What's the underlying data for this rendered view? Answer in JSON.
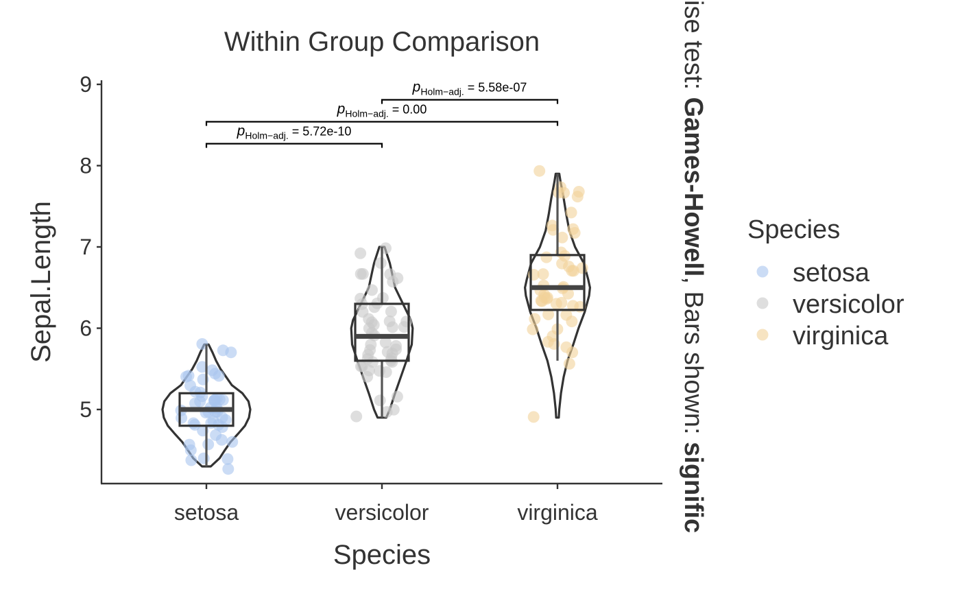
{
  "chart_data": {
    "type": "violin-box-scatter",
    "title": "Within Group Comparison",
    "xlabel": "Species",
    "ylabel": "Sepal.Length",
    "categories": [
      "setosa",
      "versicolor",
      "virginica"
    ],
    "ylim": [
      4.1,
      9.05
    ],
    "yticks": [
      5,
      6,
      7,
      8,
      9
    ],
    "grid": false,
    "legend": {
      "title": "Species",
      "position": "right",
      "entries": [
        "setosa",
        "versicolor",
        "virginica"
      ]
    },
    "colors": {
      "setosa": "#a9c4ef",
      "versicolor": "#c8c8c8",
      "virginica": "#f2d29a",
      "outline": "#333333"
    },
    "boxes": [
      {
        "category": "setosa",
        "min": 4.3,
        "q1": 4.8,
        "median": 5.0,
        "q3": 5.2,
        "max": 5.8
      },
      {
        "category": "versicolor",
        "min": 4.9,
        "q1": 5.6,
        "median": 5.9,
        "q3": 6.3,
        "max": 7.0
      },
      {
        "category": "virginica",
        "min": 5.6,
        "q1": 6.225,
        "median": 6.5,
        "q3": 6.9,
        "max": 7.9
      }
    ],
    "violins": [
      {
        "category": "setosa",
        "min": 4.3,
        "max": 5.8,
        "profile": [
          [
            4.3,
            0.1
          ],
          [
            4.4,
            0.3
          ],
          [
            4.5,
            0.42
          ],
          [
            4.6,
            0.55
          ],
          [
            4.7,
            0.72
          ],
          [
            4.8,
            0.88
          ],
          [
            4.9,
            0.97
          ],
          [
            5.0,
            1.0
          ],
          [
            5.1,
            0.96
          ],
          [
            5.2,
            0.82
          ],
          [
            5.3,
            0.58
          ],
          [
            5.4,
            0.45
          ],
          [
            5.5,
            0.32
          ],
          [
            5.6,
            0.22
          ],
          [
            5.7,
            0.14
          ],
          [
            5.8,
            0.05
          ]
        ]
      },
      {
        "category": "versicolor",
        "min": 4.9,
        "max": 7.0,
        "profile": [
          [
            4.9,
            0.1
          ],
          [
            5.0,
            0.18
          ],
          [
            5.2,
            0.3
          ],
          [
            5.4,
            0.43
          ],
          [
            5.6,
            0.56
          ],
          [
            5.8,
            0.68
          ],
          [
            6.0,
            0.7
          ],
          [
            6.1,
            0.66
          ],
          [
            6.3,
            0.48
          ],
          [
            6.5,
            0.3
          ],
          [
            6.7,
            0.22
          ],
          [
            6.8,
            0.18
          ],
          [
            7.0,
            0.06
          ]
        ]
      },
      {
        "category": "virginica",
        "min": 4.9,
        "max": 7.9,
        "profile": [
          [
            4.9,
            0.03
          ],
          [
            5.0,
            0.04
          ],
          [
            5.2,
            0.08
          ],
          [
            5.4,
            0.14
          ],
          [
            5.6,
            0.23
          ],
          [
            5.8,
            0.36
          ],
          [
            6.0,
            0.48
          ],
          [
            6.2,
            0.62
          ],
          [
            6.4,
            0.72
          ],
          [
            6.5,
            0.74
          ],
          [
            6.6,
            0.7
          ],
          [
            6.8,
            0.6
          ],
          [
            7.0,
            0.4
          ],
          [
            7.2,
            0.27
          ],
          [
            7.4,
            0.2
          ],
          [
            7.6,
            0.14
          ],
          [
            7.8,
            0.07
          ],
          [
            7.9,
            0.04
          ]
        ]
      }
    ],
    "points": [
      {
        "category": "setosa",
        "values": [
          5.1,
          4.9,
          4.7,
          4.6,
          5.0,
          5.4,
          4.6,
          5.0,
          4.4,
          4.9,
          5.4,
          4.8,
          4.8,
          4.3,
          5.8,
          5.7,
          5.4,
          5.1,
          5.7,
          5.1,
          5.4,
          5.1,
          4.6,
          5.1,
          4.8,
          5.0,
          5.0,
          5.2,
          5.2,
          4.7,
          4.8,
          5.4,
          5.2,
          5.5,
          4.9,
          5.0,
          5.5,
          4.9,
          4.4,
          5.1,
          5.0,
          4.5,
          4.4,
          5.0,
          5.1,
          4.8,
          5.1,
          4.6,
          5.3,
          5.0
        ]
      },
      {
        "category": "versicolor",
        "values": [
          7.0,
          6.4,
          6.9,
          5.5,
          6.5,
          5.7,
          6.3,
          4.9,
          6.6,
          5.2,
          5.0,
          5.9,
          6.0,
          6.1,
          5.6,
          6.7,
          5.6,
          5.8,
          6.2,
          5.6,
          5.9,
          6.1,
          6.3,
          6.1,
          6.4,
          6.6,
          6.8,
          6.7,
          6.0,
          5.7,
          5.5,
          5.5,
          5.8,
          6.0,
          5.4,
          6.0,
          6.7,
          6.3,
          5.6,
          5.5,
          5.5,
          6.1,
          5.8,
          5.0,
          5.6,
          5.7,
          5.7,
          6.2,
          5.1,
          5.7
        ]
      },
      {
        "category": "virginica",
        "values": [
          6.3,
          5.8,
          7.1,
          6.3,
          6.5,
          7.6,
          4.9,
          7.3,
          6.7,
          7.2,
          6.5,
          6.4,
          6.8,
          5.7,
          5.8,
          6.4,
          6.5,
          7.7,
          7.7,
          6.0,
          6.9,
          5.6,
          7.7,
          6.3,
          6.7,
          7.2,
          6.2,
          6.1,
          6.4,
          7.2,
          7.4,
          7.9,
          6.4,
          6.3,
          6.1,
          7.7,
          6.3,
          6.4,
          6.0,
          6.9,
          6.7,
          6.9,
          5.8,
          6.8,
          6.7,
          6.7,
          6.3,
          6.5,
          6.2,
          5.9
        ]
      }
    ],
    "comparisons": [
      {
        "from": "setosa",
        "to": "versicolor",
        "y": 8.27,
        "p_prefix": "p",
        "p_subscript": "Holm−adj.",
        "p_value": " = 5.72e-10"
      },
      {
        "from": "setosa",
        "to": "virginica",
        "y": 8.54,
        "p_prefix": "p",
        "p_subscript": "Holm−adj.",
        "p_value": " = 0.00"
      },
      {
        "from": "versicolor",
        "to": "virginica",
        "y": 8.81,
        "p_prefix": "p",
        "p_subscript": "Holm−adj.",
        "p_value": " = 5.58e-07"
      }
    ],
    "side_caption": {
      "part1": "ise test: ",
      "test_name": "Games-Howell",
      "part2": ", Bars shown: ",
      "bars": "signific"
    }
  }
}
